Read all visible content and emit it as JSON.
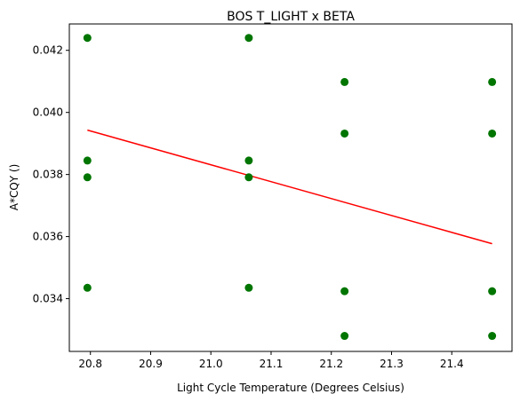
{
  "chart_data": {
    "type": "scatter",
    "title": "BOS T_LIGHT x BETA",
    "xlabel": "Light Cycle Temperature (Degrees Celsius)",
    "ylabel": "A*CQY ()",
    "xlim": [
      20.765,
      21.5
    ],
    "ylim": [
      0.0323,
      0.04285
    ],
    "xticks": [
      "20.8",
      "20.9",
      "21.0",
      "21.1",
      "21.2",
      "21.3",
      "21.4"
    ],
    "yticks": [
      "0.034",
      "0.036",
      "0.038",
      "0.040",
      "0.042"
    ],
    "grid": false,
    "point_color": "#007500",
    "line_color": "#ff0000",
    "points": [
      {
        "x": 20.795,
        "y": 0.0424
      },
      {
        "x": 20.795,
        "y": 0.03845
      },
      {
        "x": 20.795,
        "y": 0.03791
      },
      {
        "x": 20.795,
        "y": 0.03435
      },
      {
        "x": 21.063,
        "y": 0.0424
      },
      {
        "x": 21.063,
        "y": 0.03845
      },
      {
        "x": 21.063,
        "y": 0.03791
      },
      {
        "x": 21.063,
        "y": 0.03435
      },
      {
        "x": 21.222,
        "y": 0.04098
      },
      {
        "x": 21.222,
        "y": 0.03932
      },
      {
        "x": 21.222,
        "y": 0.03424
      },
      {
        "x": 21.222,
        "y": 0.0328
      },
      {
        "x": 21.467,
        "y": 0.04098
      },
      {
        "x": 21.467,
        "y": 0.03932
      },
      {
        "x": 21.467,
        "y": 0.03424
      },
      {
        "x": 21.467,
        "y": 0.0328
      }
    ],
    "trend_line": {
      "x": [
        20.795,
        21.467
      ],
      "y": [
        0.03943,
        0.03577
      ]
    }
  }
}
